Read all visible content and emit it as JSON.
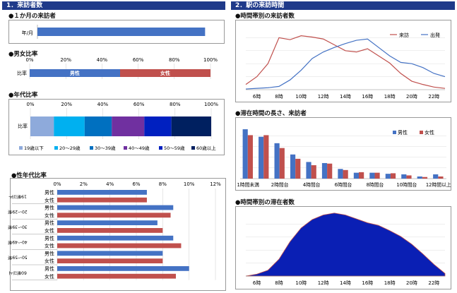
{
  "sections": {
    "left": "1．来訪者数",
    "right": "2．駅の来訪時間"
  },
  "visitors_title": "●１か月の来訪者",
  "gender_title": "●男女比率",
  "age_title": "●年代比率",
  "genderage_title": "●性年代比率",
  "hourly_title": "●時間帯別の来訪者数",
  "stay_title": "●滞在時間の長さ、来訪者",
  "staying_title": "●時間帯別の滞在者数",
  "colors": {
    "header": "#1f3a8a",
    "blue": "#4472c4",
    "red": "#c0504d",
    "navy": "#0a1fb4"
  },
  "chart_data": [
    {
      "id": "monthly",
      "type": "bar",
      "categories": [
        "年/月"
      ],
      "values": [
        0.92
      ],
      "xlim": [
        0,
        1
      ]
    },
    {
      "id": "gender",
      "type": "bar",
      "stacked": true,
      "xlim": [
        0,
        100
      ],
      "ticks": [
        "0%",
        "20%",
        "40%",
        "60%",
        "80%",
        "100%"
      ],
      "categories": [
        "比率"
      ],
      "series": [
        {
          "name": "男性",
          "values": [
            50
          ],
          "color": "#4472c4"
        },
        {
          "name": "女性",
          "values": [
            50
          ],
          "color": "#c0504d"
        }
      ]
    },
    {
      "id": "age",
      "type": "bar",
      "stacked": true,
      "xlim": [
        0,
        100
      ],
      "ticks": [
        "0%",
        "20%",
        "40%",
        "60%",
        "80%",
        "100%"
      ],
      "categories": [
        "比率"
      ],
      "series": [
        {
          "name": "19歳以下",
          "values": [
            13
          ],
          "color": "#8eaadb"
        },
        {
          "name": "20～29歳",
          "values": [
            17
          ],
          "color": "#00b0f0"
        },
        {
          "name": "30～39歳",
          "values": [
            15
          ],
          "color": "#0070c0"
        },
        {
          "name": "40～49歳",
          "values": [
            18
          ],
          "color": "#7030a0"
        },
        {
          "name": "50～59歳",
          "values": [
            15
          ],
          "color": "#0020c0"
        },
        {
          "name": "60歳以上",
          "values": [
            22
          ],
          "color": "#002060"
        }
      ]
    },
    {
      "id": "gender_age",
      "type": "bar",
      "xlim": [
        0,
        12
      ],
      "ticks": [
        "0%",
        "2%",
        "4%",
        "6%",
        "8%",
        "10%",
        "12%"
      ],
      "groups": [
        "19歳以下",
        "20～29歳",
        "30～39歳",
        "40～49歳",
        "50～59歳",
        "60歳以上"
      ],
      "rows": [
        {
          "group": 0,
          "label": "男性",
          "value": 6.8
        },
        {
          "group": 0,
          "label": "女性",
          "value": 6.8
        },
        {
          "group": 1,
          "label": "男性",
          "value": 8.8
        },
        {
          "group": 1,
          "label": "女性",
          "value": 8.6
        },
        {
          "group": 2,
          "label": "男性",
          "value": 7.6
        },
        {
          "group": 2,
          "label": "女性",
          "value": 8.0
        },
        {
          "group": 3,
          "label": "男性",
          "value": 8.8
        },
        {
          "group": 3,
          "label": "女性",
          "value": 9.4
        },
        {
          "group": 4,
          "label": "男性",
          "value": 8.0
        },
        {
          "group": 4,
          "label": "女性",
          "value": 8.0
        },
        {
          "group": 5,
          "label": "男性",
          "value": 10.0
        },
        {
          "group": 5,
          "label": "女性",
          "value": 9.0
        }
      ]
    },
    {
      "id": "hourly",
      "type": "line",
      "x": [
        5,
        6,
        7,
        8,
        9,
        10,
        11,
        12,
        13,
        14,
        15,
        16,
        17,
        18,
        19,
        20,
        21,
        22,
        23
      ],
      "xticks": [
        "6時",
        "8時",
        "10時",
        "12時",
        "14時",
        "16時",
        "18時",
        "20時",
        "22時"
      ],
      "ylim": [
        0,
        10
      ],
      "series": [
        {
          "name": "来訪",
          "color": "#c0504d",
          "values": [
            0.8,
            2,
            4,
            8,
            7.7,
            8.3,
            8.1,
            7.8,
            6.9,
            6,
            5.8,
            6.3,
            5.2,
            4.1,
            2.5,
            1.3,
            0.8,
            0.4,
            0.2
          ]
        },
        {
          "name": "出発",
          "color": "#4472c4",
          "values": [
            0.1,
            0.2,
            0.3,
            0.5,
            1.5,
            3,
            4.8,
            5.8,
            6.5,
            7.1,
            7.6,
            7.8,
            6.5,
            5.2,
            4.2,
            4,
            3.4,
            2.5,
            2
          ]
        }
      ]
    },
    {
      "id": "stay",
      "type": "bar",
      "categories": [
        "1時間未満",
        "",
        "2時間台",
        "",
        "4時間台",
        "",
        "6時間台",
        "",
        "8時間台",
        "",
        "10時間台",
        "",
        "12時間以上"
      ],
      "ylim": [
        0,
        10
      ],
      "series": [
        {
          "name": "男性",
          "color": "#4472c4",
          "values": [
            9.2,
            7.8,
            6.6,
            4.5,
            3.1,
            2.9,
            1.8,
            1.1,
            1.1,
            0.9,
            0.8,
            0.4,
            0.8
          ]
        },
        {
          "name": "女性",
          "color": "#c0504d",
          "values": [
            8.1,
            8.1,
            5.7,
            3.7,
            2.5,
            2.8,
            1.6,
            1.2,
            1.1,
            1.0,
            0.6,
            0.3,
            0.4
          ]
        }
      ]
    },
    {
      "id": "staying",
      "type": "area",
      "x": [
        5,
        6,
        7,
        8,
        9,
        10,
        11,
        12,
        13,
        14,
        15,
        16,
        17,
        18,
        19,
        20,
        21,
        22,
        23
      ],
      "xticks": [
        "6時",
        "8時",
        "10時",
        "12時",
        "14時",
        "16時",
        "18時",
        "20時",
        "22時"
      ],
      "ylim": [
        0,
        10
      ],
      "series": [
        {
          "name": "",
          "color": "#0a1fb4",
          "values": [
            0,
            0.3,
            0.9,
            2.6,
            5.3,
            7.4,
            8.7,
            9.4,
            9.7,
            9.4,
            8.8,
            8.2,
            7.8,
            7,
            6.1,
            4.9,
            3.4,
            1.8,
            0.4
          ]
        }
      ]
    }
  ]
}
